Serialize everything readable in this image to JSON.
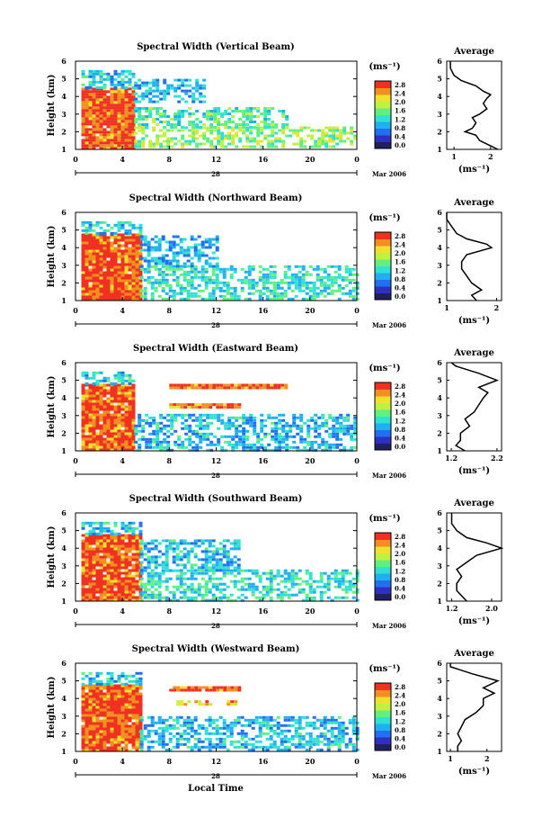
{
  "chart_data": {
    "type": "heatmap",
    "x_label": "Local Time",
    "x_date_label": "Mar 2006",
    "x_day_label": "28",
    "x_tick_labels": [
      "0",
      "4",
      "8",
      "12",
      "16",
      "20",
      "0"
    ],
    "y_label": "Height (km)",
    "y_tick_labels": [
      "1",
      "2",
      "3",
      "4",
      "5",
      "6"
    ],
    "y_range": [
      1,
      6
    ],
    "colorbar_unit": "(ms⁻¹)",
    "colorbar_ticks": [
      "0.0",
      "0.4",
      "0.8",
      "1.2",
      "1.6",
      "2.0",
      "2.4",
      "2.8"
    ],
    "colorbar_ticks_alt": [
      "0.0",
      "0.4",
      "0.8",
      "1.2",
      "1.6",
      "2.0",
      "2.4",
      "2.8"
    ],
    "colormap": [
      "#202060",
      "#3030c0",
      "#2070f0",
      "#20b0f0",
      "#30e0d0",
      "#60f080",
      "#c0f040",
      "#f0e030",
      "#f09020",
      "#f03020"
    ],
    "avg_title": "Average",
    "avg_xlabel": "(ms⁻¹)",
    "panels": [
      {
        "title": "Spectral Width (Vertical Beam)",
        "avg_xticks": [
          "1",
          "2"
        ],
        "avg_xrange": [
          0.8,
          2.3
        ],
        "avg_profile": [
          [
            1,
            2.2
          ],
          [
            1.2,
            2.0
          ],
          [
            1.5,
            1.7
          ],
          [
            1.8,
            1.6
          ],
          [
            2.0,
            1.3
          ],
          [
            2.2,
            1.5
          ],
          [
            2.5,
            1.6
          ],
          [
            2.8,
            1.5
          ],
          [
            3.0,
            1.7
          ],
          [
            3.3,
            1.9
          ],
          [
            3.6,
            1.8
          ],
          [
            3.9,
            1.9
          ],
          [
            4.1,
            2.0
          ],
          [
            4.3,
            1.8
          ],
          [
            4.6,
            1.6
          ],
          [
            4.9,
            1.2
          ],
          [
            5.2,
            1.0
          ],
          [
            5.6,
            0.9
          ],
          [
            6.0,
            0.9
          ]
        ],
        "fields": [
          {
            "t0": 0.5,
            "t1": 5.0,
            "h0": 1.0,
            "h1": 4.5,
            "level": 8.7
          },
          {
            "t0": 0.5,
            "t1": 5.0,
            "h0": 4.5,
            "h1": 5.5,
            "level": 3.5
          },
          {
            "t0": 5.0,
            "t1": 24.0,
            "h0": 1.1,
            "h1": 2.3,
            "level": 5.5
          },
          {
            "t0": 5.0,
            "t1": 18.0,
            "h0": 2.3,
            "h1": 3.4,
            "level": 4.5
          },
          {
            "t0": 5.0,
            "t1": 11.0,
            "h0": 3.7,
            "h1": 5.0,
            "level": 3.0
          }
        ]
      },
      {
        "title": "Spectral Width (Northward Beam)",
        "avg_xticks": [
          "1",
          "2"
        ],
        "avg_xrange": [
          1.0,
          2.1
        ],
        "avg_profile": [
          [
            1,
            1.6
          ],
          [
            1.3,
            1.5
          ],
          [
            1.6,
            1.7
          ],
          [
            2.0,
            1.5
          ],
          [
            2.4,
            1.4
          ],
          [
            2.8,
            1.3
          ],
          [
            3.2,
            1.3
          ],
          [
            3.6,
            1.4
          ],
          [
            4.0,
            1.9
          ],
          [
            4.2,
            1.8
          ],
          [
            4.5,
            1.4
          ],
          [
            4.8,
            1.2
          ],
          [
            5.2,
            1.1
          ],
          [
            5.6,
            1.0
          ],
          [
            6.0,
            1.0
          ]
        ],
        "fields": [
          {
            "t0": 0.5,
            "t1": 5.5,
            "h0": 1.0,
            "h1": 4.8,
            "level": 8.7
          },
          {
            "t0": 0.5,
            "t1": 5.5,
            "h0": 4.8,
            "h1": 5.5,
            "level": 3.5
          },
          {
            "t0": 5.5,
            "t1": 24.0,
            "h0": 1.1,
            "h1": 3.0,
            "level": 4.0
          },
          {
            "t0": 5.5,
            "t1": 12.0,
            "h0": 3.0,
            "h1": 4.7,
            "level": 3.0
          }
        ]
      },
      {
        "title": "Spectral Width (Eastward Beam)",
        "avg_xticks": [
          "1.2",
          "2.2"
        ],
        "avg_xrange": [
          1.1,
          2.3
        ],
        "avg_profile": [
          [
            1,
            1.5
          ],
          [
            1.3,
            1.3
          ],
          [
            1.6,
            1.4
          ],
          [
            2.0,
            1.4
          ],
          [
            2.4,
            1.6
          ],
          [
            2.8,
            1.5
          ],
          [
            3.2,
            1.7
          ],
          [
            3.6,
            1.8
          ],
          [
            4.0,
            1.9
          ],
          [
            4.3,
            2.0
          ],
          [
            4.6,
            1.8
          ],
          [
            5.0,
            2.2
          ],
          [
            5.4,
            1.8
          ],
          [
            5.8,
            1.3
          ],
          [
            6.0,
            1.2
          ]
        ],
        "fields": [
          {
            "t0": 0.5,
            "t1": 5.0,
            "h0": 1.0,
            "h1": 4.8,
            "level": 8.7
          },
          {
            "t0": 0.5,
            "t1": 5.0,
            "h0": 4.8,
            "h1": 5.5,
            "level": 3.5
          },
          {
            "t0": 5.0,
            "t1": 24.0,
            "h0": 1.1,
            "h1": 3.1,
            "level": 3.3
          },
          {
            "t0": 8.0,
            "t1": 18.0,
            "h0": 4.6,
            "h1": 4.8,
            "level": 8.5
          },
          {
            "t0": 8.0,
            "t1": 14.0,
            "h0": 3.4,
            "h1": 3.7,
            "level": 8.0
          }
        ]
      },
      {
        "title": "Spectral Width (Southward Beam)",
        "avg_xticks": [
          "1.2",
          "2.0"
        ],
        "avg_xrange": [
          1.1,
          2.2
        ],
        "avg_profile": [
          [
            1,
            1.5
          ],
          [
            1.3,
            1.4
          ],
          [
            1.6,
            1.3
          ],
          [
            2.0,
            1.3
          ],
          [
            2.4,
            1.4
          ],
          [
            2.8,
            1.3
          ],
          [
            3.2,
            1.5
          ],
          [
            3.6,
            1.7
          ],
          [
            4.0,
            2.2
          ],
          [
            4.3,
            1.9
          ],
          [
            4.6,
            1.5
          ],
          [
            5.0,
            1.3
          ],
          [
            5.4,
            1.2
          ],
          [
            6.0,
            1.2
          ]
        ],
        "fields": [
          {
            "t0": 0.5,
            "t1": 5.5,
            "h0": 1.0,
            "h1": 4.8,
            "level": 8.7
          },
          {
            "t0": 0.5,
            "t1": 5.5,
            "h0": 4.8,
            "h1": 5.5,
            "level": 3.5
          },
          {
            "t0": 5.5,
            "t1": 24.0,
            "h0": 1.1,
            "h1": 2.8,
            "level": 4.0
          },
          {
            "t0": 5.5,
            "t1": 14.0,
            "h0": 2.8,
            "h1": 4.5,
            "level": 3.3
          }
        ]
      },
      {
        "title": "Spectral Width (Westward Beam)",
        "avg_xticks": [
          "1",
          "2"
        ],
        "avg_xrange": [
          0.9,
          2.4
        ],
        "avg_profile": [
          [
            1,
            1.2
          ],
          [
            1.3,
            1.2
          ],
          [
            1.6,
            1.3
          ],
          [
            2.0,
            1.2
          ],
          [
            2.4,
            1.3
          ],
          [
            2.8,
            1.4
          ],
          [
            3.2,
            1.7
          ],
          [
            3.6,
            1.9
          ],
          [
            4.0,
            1.9
          ],
          [
            4.3,
            2.2
          ],
          [
            4.6,
            1.9
          ],
          [
            5.0,
            2.3
          ],
          [
            5.4,
            1.6
          ],
          [
            5.8,
            1.0
          ],
          [
            6.0,
            1.0
          ]
        ],
        "fields": [
          {
            "t0": 0.5,
            "t1": 5.5,
            "h0": 1.0,
            "h1": 4.8,
            "level": 8.7
          },
          {
            "t0": 0.5,
            "t1": 5.5,
            "h0": 4.8,
            "h1": 5.5,
            "level": 3.5
          },
          {
            "t0": 5.5,
            "t1": 24.0,
            "h0": 1.1,
            "h1": 3.0,
            "level": 3.3
          },
          {
            "t0": 8.0,
            "t1": 14.0,
            "h0": 4.5,
            "h1": 4.7,
            "level": 8.5
          },
          {
            "t0": 8.0,
            "t1": 14.0,
            "h0": 3.6,
            "h1": 3.9,
            "level": 7.5
          }
        ]
      }
    ]
  }
}
